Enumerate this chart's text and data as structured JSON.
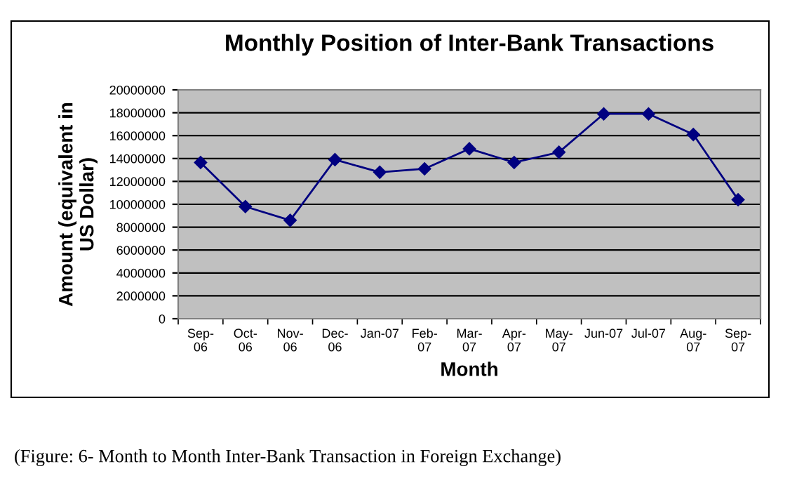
{
  "chart_data": {
    "type": "line",
    "title": "Monthly Position of Inter-Bank Transactions",
    "xlabel": "Month",
    "ylabel": "Amount (equivalent in\nUS Dollar)",
    "categories": [
      "Sep-\n06",
      "Oct-\n06",
      "Nov-\n06",
      "Dec-\n06",
      "Jan-07",
      "Feb-\n07",
      "Mar-\n07",
      "Apr-\n07",
      "May-\n07",
      "Jun-07",
      "Jul-07",
      "Aug-\n07",
      "Sep-\n07"
    ],
    "series": [
      {
        "color": "#000080",
        "values": [
          13650000,
          9800000,
          8600000,
          13900000,
          12800000,
          13100000,
          14850000,
          13650000,
          14550000,
          17900000,
          17900000,
          16100000,
          10400000
        ]
      }
    ],
    "ylim": [
      0,
      20000000
    ],
    "yticks": [
      0,
      2000000,
      4000000,
      6000000,
      8000000,
      10000000,
      12000000,
      14000000,
      16000000,
      18000000,
      20000000
    ],
    "grid": "y",
    "marker": "diamond",
    "line_style": "solid",
    "legend": false,
    "annotations": [
      "(Figure: 6- Month to Month Inter-Bank Transaction in Foreign Exchange)"
    ]
  }
}
